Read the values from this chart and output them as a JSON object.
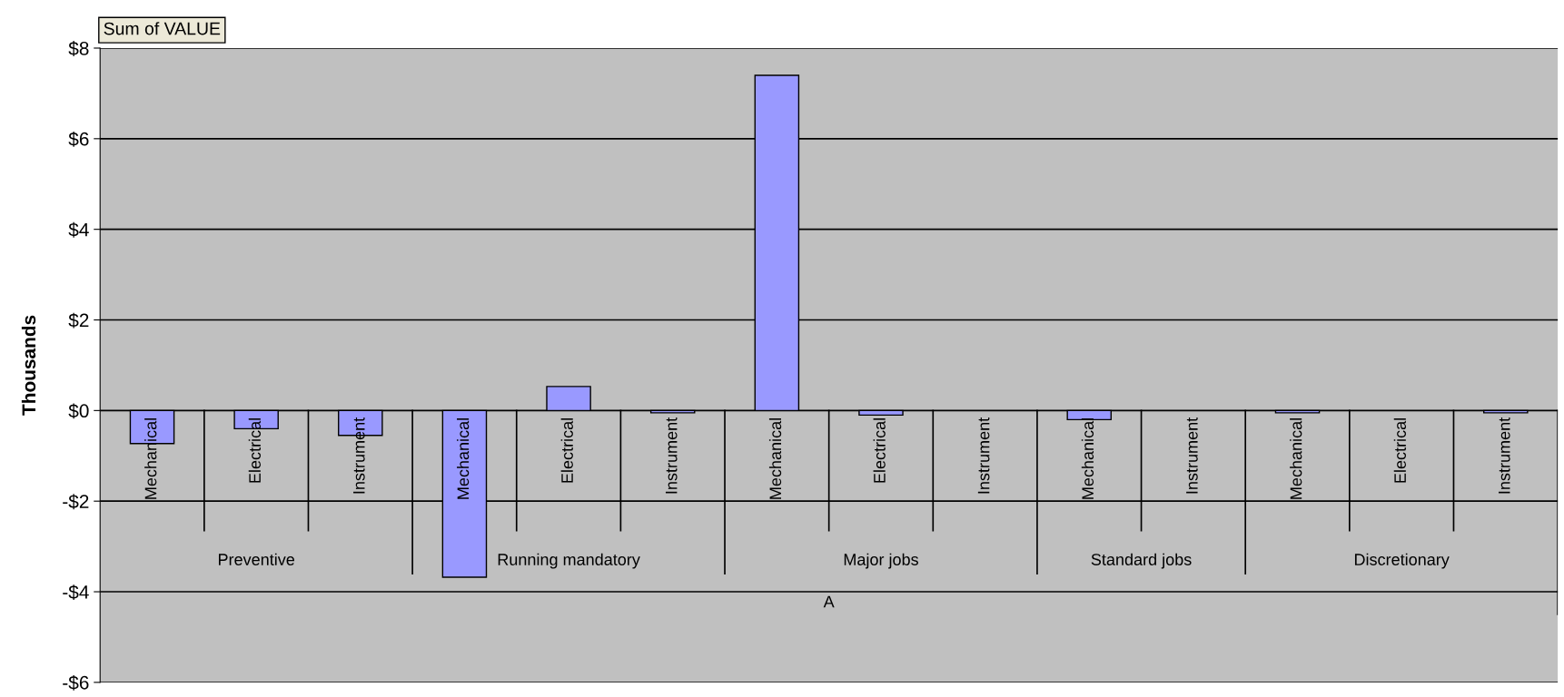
{
  "chart_data": {
    "type": "bar",
    "ylabel": "Thousands",
    "categories": [
      "Mechanical",
      "Electrical",
      "Instrument",
      "Mechanical",
      "Electrical",
      "Instrument",
      "Mechanical",
      "Electrical",
      "Instrument",
      "Mechanical",
      "Instrument",
      "Mechanical",
      "Electrical",
      "Instrument"
    ],
    "series": [
      {
        "color": "#9999ff",
        "values": [
          -0.73,
          -0.4,
          -0.55,
          -3.68,
          0.53,
          -0.05,
          7.4,
          -0.1,
          null,
          -0.2,
          null,
          -0.05,
          null,
          -0.05
        ]
      }
    ],
    "ylim": [
      -6,
      8
    ],
    "yticks": [
      {
        "value": -6,
        "label": "-$6"
      },
      {
        "value": -4,
        "label": "-$4"
      },
      {
        "value": -2,
        "label": "-$2"
      },
      {
        "value": 0,
        "label": "$0"
      },
      {
        "value": 2,
        "label": "$2"
      },
      {
        "value": 4,
        "label": "$4"
      },
      {
        "value": 6,
        "label": "$6"
      },
      {
        "value": 8,
        "label": "$8"
      }
    ],
    "grid": "y",
    "annotations": [
      "Sum of VALUE",
      "Preventive",
      "Running mandatory",
      "Major jobs",
      "Standard jobs",
      "Discretionary",
      "A"
    ]
  }
}
